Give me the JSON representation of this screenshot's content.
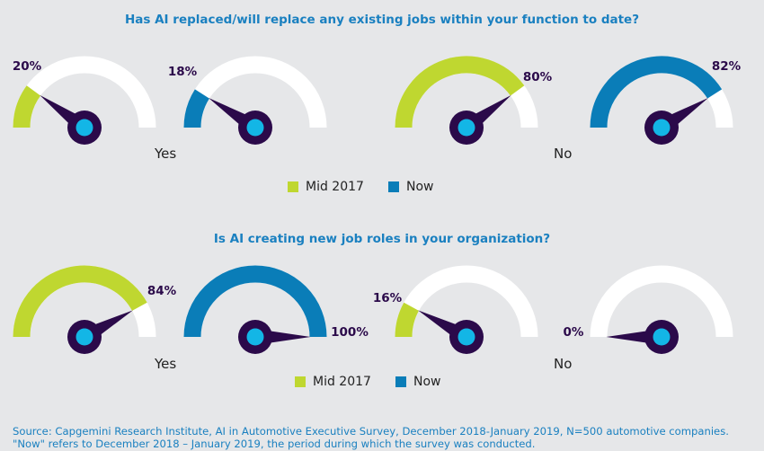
{
  "colors": {
    "mid2017": "#bfd730",
    "now": "#0a7db8",
    "track": "#ffffff",
    "needle": "#2b0a4a",
    "hub_inner": "#13b6e6"
  },
  "chart_data": [
    {
      "type": "gauge",
      "title": "Has AI replaced/will replace any existing jobs within your function to date?",
      "groups": [
        {
          "label": "Yes",
          "series": [
            {
              "name": "Mid 2017",
              "value": 20,
              "display": "20%"
            },
            {
              "name": "Now",
              "value": 18,
              "display": "18%"
            }
          ]
        },
        {
          "label": "No",
          "series": [
            {
              "name": "Mid 2017",
              "value": 80,
              "display": "80%"
            },
            {
              "name": "Now",
              "value": 82,
              "display": "82%"
            }
          ]
        }
      ],
      "legend": [
        "Mid 2017",
        "Now"
      ],
      "range": [
        0,
        100
      ]
    },
    {
      "type": "gauge",
      "title": "Is AI creating new job roles in your organization?",
      "groups": [
        {
          "label": "Yes",
          "series": [
            {
              "name": "Mid 2017",
              "value": 84,
              "display": "84%"
            },
            {
              "name": "Now",
              "value": 100,
              "display": "100%"
            }
          ]
        },
        {
          "label": "No",
          "series": [
            {
              "name": "Mid 2017",
              "value": 16,
              "display": "16%"
            },
            {
              "name": "Now",
              "value": 0,
              "display": "0%"
            }
          ]
        }
      ],
      "legend": [
        "Mid 2017",
        "Now"
      ],
      "range": [
        0,
        100
      ]
    }
  ],
  "source": {
    "line1": "Source: Capgemini Research Institute, AI in Automotive Executive Survey, December 2018-January 2019, N=500 automotive companies.",
    "line2": "\"Now\" refers to December 2018 – January 2019, the period during which the survey was conducted."
  }
}
